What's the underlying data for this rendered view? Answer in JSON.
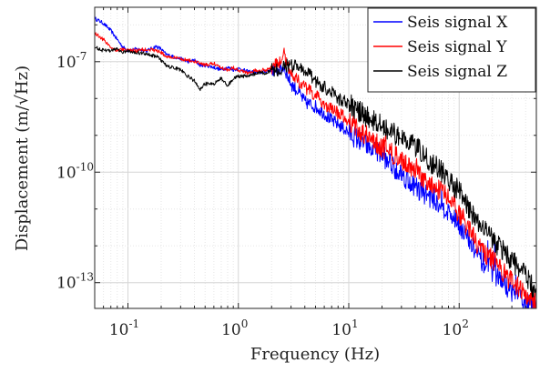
{
  "chart_data": {
    "type": "line",
    "title": "",
    "xlabel": "Frequency (Hz)",
    "ylabel": "Displacement (m/√Hz)",
    "x_scale": "log",
    "y_scale": "log",
    "xlim": [
      0.05,
      500
    ],
    "ylim": [
      2e-14,
      3e-06
    ],
    "grid": true,
    "legend": "top-right",
    "xticks": [
      {
        "value": 0.1,
        "base": "10",
        "exp": "-1"
      },
      {
        "value": 1,
        "base": "10",
        "exp": "0"
      },
      {
        "value": 10,
        "base": "10",
        "exp": "1"
      },
      {
        "value": 100,
        "base": "10",
        "exp": "2"
      }
    ],
    "yticks": [
      {
        "value": 1e-07,
        "base": "10",
        "exp": "-7"
      },
      {
        "value": 1e-10,
        "base": "10",
        "exp": "-10"
      },
      {
        "value": 1e-13,
        "base": "10",
        "exp": "-13"
      }
    ],
    "series": [
      {
        "name": "Seis signal X",
        "color": "#0000ff",
        "x": [
          0.05,
          0.06,
          0.07,
          0.08,
          0.09,
          0.1,
          0.12,
          0.15,
          0.18,
          0.2,
          0.22,
          0.25,
          0.3,
          0.35,
          0.4,
          0.45,
          0.5,
          0.6,
          0.7,
          0.8,
          0.9,
          1.0,
          1.2,
          1.5,
          1.8,
          2.0,
          2.3,
          2.6,
          2.8,
          3.0,
          3.5,
          4.0,
          5,
          6,
          7,
          8,
          10,
          12,
          15,
          20,
          25,
          30,
          40,
          50,
          60,
          70,
          80,
          100,
          120,
          150,
          200,
          250,
          300,
          400,
          500
        ],
        "y": [
          1.5e-06,
          1.1e-06,
          7e-07,
          4e-07,
          2.5e-07,
          2e-07,
          2.2e-07,
          2e-07,
          2.6e-07,
          2.2e-07,
          1.6e-07,
          1.4e-07,
          1.2e-07,
          1e-07,
          1.1e-07,
          8e-08,
          8e-08,
          7e-08,
          6e-08,
          7e-08,
          6e-08,
          6.5e-08,
          5.5e-08,
          5e-08,
          5.5e-08,
          6e-08,
          6e-08,
          7e-08,
          4e-08,
          2.5e-08,
          1.5e-08,
          8e-09,
          6e-09,
          4e-09,
          2.5e-09,
          2e-09,
          1.2e-09,
          8e-10,
          5e-10,
          3e-10,
          1.5e-10,
          9e-11,
          4e-11,
          2.5e-11,
          1.8e-11,
          1.3e-11,
          8e-12,
          4e-12,
          1.5e-12,
          5e-13,
          2e-13,
          1e-13,
          6e-14,
          3e-14,
          2e-14
        ]
      },
      {
        "name": "Seis signal Y",
        "color": "#ff0000",
        "x": [
          0.05,
          0.06,
          0.07,
          0.08,
          0.09,
          0.1,
          0.12,
          0.15,
          0.18,
          0.2,
          0.22,
          0.25,
          0.3,
          0.35,
          0.4,
          0.45,
          0.5,
          0.6,
          0.7,
          0.8,
          0.9,
          1.0,
          1.2,
          1.5,
          1.8,
          2.0,
          2.3,
          2.6,
          2.8,
          3.0,
          3.5,
          4.0,
          5,
          6,
          7,
          8,
          10,
          12,
          15,
          20,
          25,
          30,
          40,
          50,
          60,
          70,
          80,
          100,
          120,
          150,
          200,
          250,
          300,
          400,
          500
        ],
        "y": [
          6e-07,
          4e-07,
          2.5e-07,
          2e-07,
          2.2e-07,
          2e-07,
          2e-07,
          2.2e-07,
          2e-07,
          1.8e-07,
          1.4e-07,
          1.3e-07,
          1.2e-07,
          1.1e-07,
          1e-07,
          9e-08,
          8e-08,
          9e-08,
          7e-08,
          6e-08,
          7e-08,
          6e-08,
          5e-08,
          6e-08,
          6e-08,
          7e-08,
          9e-08,
          1.6e-07,
          8e-08,
          5e-08,
          3e-08,
          2e-08,
          1.2e-08,
          7e-09,
          5e-09,
          4e-09,
          2.5e-09,
          1.5e-09,
          9e-10,
          5e-10,
          3e-10,
          2e-10,
          1e-10,
          5e-11,
          4e-11,
          3e-11,
          2e-11,
          8e-12,
          3e-12,
          1e-12,
          4e-13,
          2e-13,
          1e-13,
          5e-14,
          3e-14
        ]
      },
      {
        "name": "Seis signal Z",
        "color": "#000000",
        "x": [
          0.05,
          0.06,
          0.07,
          0.08,
          0.09,
          0.1,
          0.12,
          0.15,
          0.18,
          0.2,
          0.22,
          0.25,
          0.3,
          0.35,
          0.4,
          0.45,
          0.5,
          0.6,
          0.7,
          0.8,
          0.9,
          1.0,
          1.2,
          1.5,
          1.8,
          2.0,
          2.3,
          2.6,
          2.8,
          3.0,
          3.5,
          4.0,
          5,
          6,
          7,
          8,
          10,
          12,
          15,
          20,
          25,
          30,
          40,
          50,
          60,
          70,
          80,
          100,
          120,
          150,
          200,
          250,
          300,
          400,
          500
        ],
        "y": [
          2.5e-07,
          2e-07,
          2e-07,
          2.2e-07,
          1.8e-07,
          2e-07,
          1.8e-07,
          1.6e-07,
          1.4e-07,
          1.1e-07,
          8e-08,
          7e-08,
          6e-08,
          4e-08,
          3e-08,
          1.8e-08,
          2.5e-08,
          2.5e-08,
          3.5e-08,
          2.2e-08,
          3.5e-08,
          4e-08,
          4e-08,
          5e-08,
          5e-08,
          6e-08,
          6e-08,
          7e-08,
          8e-08,
          8e-08,
          7e-08,
          6e-08,
          3e-08,
          2e-08,
          1.5e-08,
          1e-08,
          7e-09,
          5e-09,
          3e-09,
          2e-09,
          1.2e-09,
          9e-10,
          5e-10,
          2.5e-10,
          1.5e-10,
          1e-10,
          6e-11,
          3e-11,
          1.2e-11,
          4e-12,
          1.5e-12,
          7e-13,
          4e-13,
          1.5e-13,
          5e-14
        ]
      }
    ]
  }
}
